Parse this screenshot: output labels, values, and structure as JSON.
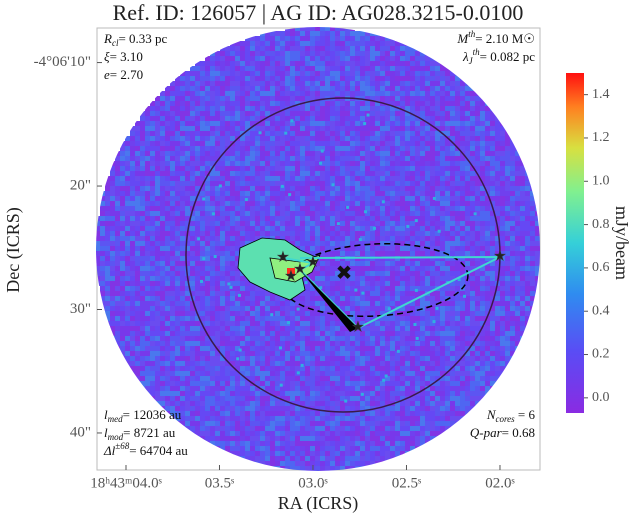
{
  "chart_data": {
    "type": "image",
    "title": "Ref. ID: 126057 | AG ID: AG028.3215-0.0100",
    "xlabel": "RA (ICRS)",
    "ylabel": "Dec (ICRS)",
    "xlim": [
      4.155,
      1.786
    ],
    "ylim": [
      7.2,
      43.0
    ],
    "xticks": [
      {
        "value": 4.0,
        "label": "18ʰ43ᵐ04.0ˢ"
      },
      {
        "value": 3.5,
        "label": "03.5ˢ"
      },
      {
        "value": 3.0,
        "label": "03.0ˢ"
      },
      {
        "value": 2.5,
        "label": "02.5ˢ"
      },
      {
        "value": 2.0,
        "label": "02.0ˢ"
      }
    ],
    "yticks": [
      {
        "value": 10,
        "label": "-4°06'10\""
      },
      {
        "value": 20,
        "label": "20\""
      },
      {
        "value": 30,
        "label": "30\""
      },
      {
        "value": 40,
        "label": "40\""
      }
    ],
    "colorbar": {
      "label": "mJy/beam",
      "clim": [
        -0.07,
        1.5
      ],
      "ticks": [
        {
          "value": 0,
          "label": "0.0"
        },
        0.2,
        0.4,
        0.6,
        0.8,
        {
          "value": 1,
          "label": "1.0"
        },
        1.2,
        1.4
      ]
    },
    "annotations": {
      "top_left": [
        {
          "main": "R",
          "sub": "cl",
          "rest": "= 0.33 pc"
        },
        {
          "main": "ξ",
          "rest": "= 3.10"
        },
        {
          "main": "e",
          "rest": "= 2.70"
        }
      ],
      "top_right": [
        {
          "main": "M",
          "sup": "th",
          "rest": "= 2.10 M☉"
        },
        {
          "main": "λ",
          "sub": "J",
          "sup": "th",
          "rest": "= 0.082 pc"
        }
      ],
      "bottom_left": [
        {
          "main": "l",
          "sub": "med",
          "rest": "= 12036 au"
        },
        {
          "main": "l",
          "sub": "mod",
          "rest": "= 8721 au"
        },
        {
          "main": "Δl",
          "sup": "±68",
          "rest": "= 64704 au"
        }
      ],
      "bottom_right": [
        {
          "main": "N",
          "sub": "cores",
          "rest": " = 6"
        },
        {
          "main": "Q-par",
          "rest": "= 0.68"
        }
      ]
    }
  }
}
